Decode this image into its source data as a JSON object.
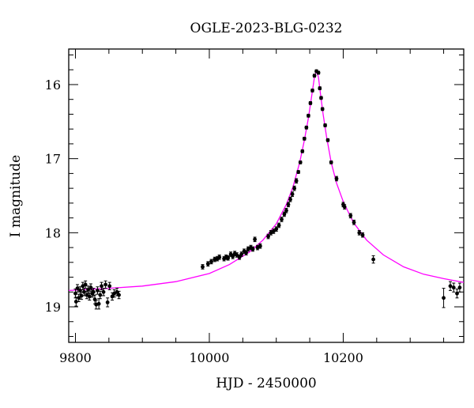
{
  "chart_data": {
    "type": "scatter",
    "title": "OGLE-2023-BLG-0232",
    "xlabel": "HJD - 2450000",
    "ylabel": "I magnitude",
    "xlim": [
      9790,
      10380
    ],
    "ylim": [
      19.48,
      15.52
    ],
    "y_inverted": true,
    "x_ticks": [
      9800,
      10000,
      10200
    ],
    "y_ticks": [
      16,
      17,
      18,
      19
    ],
    "grid": false,
    "colors": {
      "points": "#000000",
      "model": "#ff00ff",
      "frame": "#000000"
    },
    "model": {
      "name": "",
      "x": [
        9790,
        9850,
        9900,
        9950,
        10000,
        10030,
        10060,
        10080,
        10100,
        10115,
        10125,
        10135,
        10142,
        10148,
        10153,
        10157,
        10160,
        10163,
        10166,
        10170,
        10175,
        10182,
        10190,
        10200,
        10215,
        10235,
        10260,
        10290,
        10320,
        10350,
        10380
      ],
      "y": [
        18.78,
        18.75,
        18.72,
        18.66,
        18.55,
        18.43,
        18.26,
        18.1,
        17.88,
        17.62,
        17.38,
        17.05,
        16.75,
        16.45,
        16.15,
        15.9,
        15.82,
        15.9,
        16.12,
        16.4,
        16.7,
        17.05,
        17.33,
        17.58,
        17.86,
        18.1,
        18.3,
        18.46,
        18.56,
        18.62,
        18.67
      ]
    },
    "points": [
      {
        "x": 9800,
        "y": 18.82,
        "e": 0.06
      },
      {
        "x": 9801,
        "y": 18.93,
        "e": 0.06
      },
      {
        "x": 9803,
        "y": 18.75,
        "e": 0.05
      },
      {
        "x": 9805,
        "y": 18.88,
        "e": 0.05
      },
      {
        "x": 9807,
        "y": 18.78,
        "e": 0.05
      },
      {
        "x": 9809,
        "y": 18.85,
        "e": 0.05
      },
      {
        "x": 9811,
        "y": 18.72,
        "e": 0.05
      },
      {
        "x": 9813,
        "y": 18.8,
        "e": 0.05
      },
      {
        "x": 9815,
        "y": 18.7,
        "e": 0.05
      },
      {
        "x": 9817,
        "y": 18.84,
        "e": 0.05
      },
      {
        "x": 9819,
        "y": 18.77,
        "e": 0.05
      },
      {
        "x": 9821,
        "y": 18.86,
        "e": 0.05
      },
      {
        "x": 9823,
        "y": 18.74,
        "e": 0.05
      },
      {
        "x": 9825,
        "y": 18.82,
        "e": 0.05
      },
      {
        "x": 9827,
        "y": 18.8,
        "e": 0.05
      },
      {
        "x": 9829,
        "y": 18.9,
        "e": 0.06
      },
      {
        "x": 9831,
        "y": 18.97,
        "e": 0.06
      },
      {
        "x": 9833,
        "y": 18.78,
        "e": 0.05
      },
      {
        "x": 9835,
        "y": 18.96,
        "e": 0.07
      },
      {
        "x": 9837,
        "y": 18.84,
        "e": 0.05
      },
      {
        "x": 9839,
        "y": 18.72,
        "e": 0.05
      },
      {
        "x": 9842,
        "y": 18.8,
        "e": 0.05
      },
      {
        "x": 9845,
        "y": 18.7,
        "e": 0.05
      },
      {
        "x": 9848,
        "y": 18.94,
        "e": 0.06
      },
      {
        "x": 9851,
        "y": 18.72,
        "e": 0.05
      },
      {
        "x": 9855,
        "y": 18.86,
        "e": 0.05
      },
      {
        "x": 9858,
        "y": 18.82,
        "e": 0.05
      },
      {
        "x": 9862,
        "y": 18.8,
        "e": 0.05
      },
      {
        "x": 9865,
        "y": 18.84,
        "e": 0.05
      },
      {
        "x": 9990,
        "y": 18.46,
        "e": 0.03
      },
      {
        "x": 9998,
        "y": 18.42,
        "e": 0.03
      },
      {
        "x": 10003,
        "y": 18.39,
        "e": 0.03
      },
      {
        "x": 10008,
        "y": 18.36,
        "e": 0.03
      },
      {
        "x": 10012,
        "y": 18.35,
        "e": 0.03
      },
      {
        "x": 10015,
        "y": 18.33,
        "e": 0.03
      },
      {
        "x": 10022,
        "y": 18.35,
        "e": 0.03
      },
      {
        "x": 10025,
        "y": 18.33,
        "e": 0.03
      },
      {
        "x": 10028,
        "y": 18.34,
        "e": 0.03
      },
      {
        "x": 10032,
        "y": 18.29,
        "e": 0.03
      },
      {
        "x": 10035,
        "y": 18.32,
        "e": 0.03
      },
      {
        "x": 10038,
        "y": 18.28,
        "e": 0.03
      },
      {
        "x": 10041,
        "y": 18.3,
        "e": 0.03
      },
      {
        "x": 10045,
        "y": 18.33,
        "e": 0.03
      },
      {
        "x": 10048,
        "y": 18.29,
        "e": 0.03
      },
      {
        "x": 10052,
        "y": 18.25,
        "e": 0.03
      },
      {
        "x": 10055,
        "y": 18.27,
        "e": 0.03
      },
      {
        "x": 10058,
        "y": 18.22,
        "e": 0.03
      },
      {
        "x": 10062,
        "y": 18.2,
        "e": 0.03
      },
      {
        "x": 10065,
        "y": 18.22,
        "e": 0.03
      },
      {
        "x": 10068,
        "y": 18.09,
        "e": 0.03
      },
      {
        "x": 10072,
        "y": 18.2,
        "e": 0.03
      },
      {
        "x": 10076,
        "y": 18.18,
        "e": 0.03
      },
      {
        "x": 10088,
        "y": 18.05,
        "e": 0.03
      },
      {
        "x": 10092,
        "y": 18.0,
        "e": 0.03
      },
      {
        "x": 10096,
        "y": 17.98,
        "e": 0.03
      },
      {
        "x": 10100,
        "y": 17.95,
        "e": 0.03
      },
      {
        "x": 10104,
        "y": 17.9,
        "e": 0.03
      },
      {
        "x": 10108,
        "y": 17.82,
        "e": 0.03
      },
      {
        "x": 10112,
        "y": 17.75,
        "e": 0.03
      },
      {
        "x": 10115,
        "y": 17.7,
        "e": 0.03
      },
      {
        "x": 10118,
        "y": 17.62,
        "e": 0.03
      },
      {
        "x": 10121,
        "y": 17.55,
        "e": 0.03
      },
      {
        "x": 10124,
        "y": 17.48,
        "e": 0.03
      },
      {
        "x": 10127,
        "y": 17.4,
        "e": 0.03
      },
      {
        "x": 10130,
        "y": 17.3,
        "e": 0.03
      },
      {
        "x": 10133,
        "y": 17.18,
        "e": 0.02
      },
      {
        "x": 10136,
        "y": 17.05,
        "e": 0.02
      },
      {
        "x": 10139,
        "y": 16.9,
        "e": 0.02
      },
      {
        "x": 10142,
        "y": 16.73,
        "e": 0.02
      },
      {
        "x": 10145,
        "y": 16.58,
        "e": 0.02
      },
      {
        "x": 10148,
        "y": 16.42,
        "e": 0.02
      },
      {
        "x": 10151,
        "y": 16.25,
        "e": 0.02
      },
      {
        "x": 10154,
        "y": 16.08,
        "e": 0.02
      },
      {
        "x": 10157,
        "y": 15.88,
        "e": 0.02
      },
      {
        "x": 10160,
        "y": 15.82,
        "e": 0.02
      },
      {
        "x": 10163,
        "y": 15.84,
        "e": 0.02
      },
      {
        "x": 10165,
        "y": 16.05,
        "e": 0.02
      },
      {
        "x": 10167,
        "y": 16.18,
        "e": 0.02
      },
      {
        "x": 10169,
        "y": 16.33,
        "e": 0.02
      },
      {
        "x": 10173,
        "y": 16.55,
        "e": 0.02
      },
      {
        "x": 10177,
        "y": 16.75,
        "e": 0.02
      },
      {
        "x": 10182,
        "y": 17.05,
        "e": 0.02
      },
      {
        "x": 10190,
        "y": 17.27,
        "e": 0.03
      },
      {
        "x": 10200,
        "y": 17.62,
        "e": 0.03
      },
      {
        "x": 10202,
        "y": 17.65,
        "e": 0.03
      },
      {
        "x": 10211,
        "y": 17.77,
        "e": 0.03
      },
      {
        "x": 10216,
        "y": 17.86,
        "e": 0.03
      },
      {
        "x": 10224,
        "y": 18.0,
        "e": 0.03
      },
      {
        "x": 10229,
        "y": 18.03,
        "e": 0.03
      },
      {
        "x": 10245,
        "y": 18.36,
        "e": 0.05
      },
      {
        "x": 10350,
        "y": 18.88,
        "e": 0.13
      },
      {
        "x": 10360,
        "y": 18.72,
        "e": 0.06
      },
      {
        "x": 10365,
        "y": 18.74,
        "e": 0.06
      },
      {
        "x": 10370,
        "y": 18.82,
        "e": 0.06
      },
      {
        "x": 10374,
        "y": 18.74,
        "e": 0.06
      }
    ]
  }
}
